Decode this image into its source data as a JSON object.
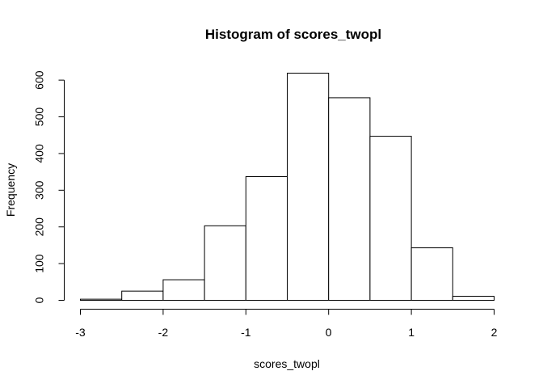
{
  "chart_data": {
    "type": "bar",
    "title": "Histogram of scores_twopl",
    "xlabel": "scores_twopl",
    "ylabel": "Frequency",
    "bins": [
      {
        "x0": -3.0,
        "x1": -2.5,
        "count": 3
      },
      {
        "x0": -2.5,
        "x1": -2.0,
        "count": 25
      },
      {
        "x0": -2.0,
        "x1": -1.5,
        "count": 56
      },
      {
        "x0": -1.5,
        "x1": -1.0,
        "count": 203
      },
      {
        "x0": -1.0,
        "x1": -0.5,
        "count": 337
      },
      {
        "x0": -0.5,
        "x1": 0.0,
        "count": 619
      },
      {
        "x0": 0.0,
        "x1": 0.5,
        "count": 552
      },
      {
        "x0": 0.5,
        "x1": 1.0,
        "count": 447
      },
      {
        "x0": 1.0,
        "x1": 1.5,
        "count": 143
      },
      {
        "x0": 1.5,
        "x1": 2.0,
        "count": 11
      }
    ],
    "xticks": [
      -3,
      -2,
      -1,
      0,
      1,
      2
    ],
    "yticks": [
      0,
      100,
      200,
      300,
      400,
      500,
      600
    ],
    "xlim": [
      -3,
      2
    ],
    "ylim": [
      0,
      619
    ],
    "grid": false,
    "bar_fill": "#ffffff",
    "bar_stroke": "#000000"
  }
}
